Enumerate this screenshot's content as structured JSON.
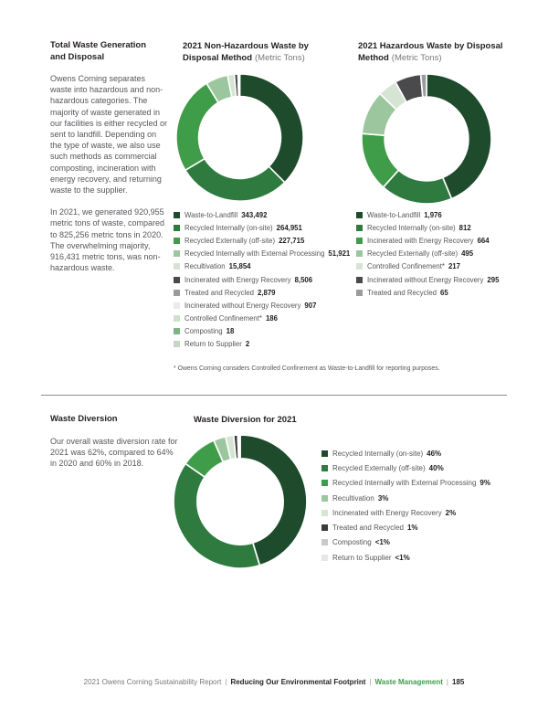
{
  "colors": {
    "accent_green": "#3f9c49",
    "text_dark": "#231f20",
    "text_muted": "#55565a",
    "divider_gray": "#8d8e90"
  },
  "sections": {
    "waste_generation": {
      "heading": "Total Waste Generation\nand Disposal",
      "paragraphs": [
        "Owens Corning separates waste into hazardous and non-hazardous categories. The majority of waste generated in our facilities is either recycled or sent to landfill. Depending on the type of waste, we also use such methods as commercial composting, incineration with energy recovery, and returning waste to the supplier.",
        "In 2021, we generated 920,955 metric tons of waste, compared to 825,256 metric tons in 2020. The overwhelming majority, 916,431 metric tons, was non-hazardous waste."
      ]
    },
    "waste_diversion": {
      "heading": "Waste Diversion",
      "paragraphs": [
        "Our overall waste diversion rate for 2021 was 62%, compared to 64% in 2020 and 60% in 2018."
      ]
    }
  },
  "footnote": "* Owens Corning considers Controlled Confinement as Waste-to-Landfill for reporting purposes.",
  "footer": {
    "parts": [
      {
        "text": "2021 Owens Corning Sustainability Report",
        "style": "muted"
      },
      {
        "text": "|",
        "style": "sep"
      },
      {
        "text": "Reducing Our Environmental Footprint",
        "style": "strong"
      },
      {
        "text": "|",
        "style": "sep"
      },
      {
        "text": "Waste Management",
        "style": "accent"
      },
      {
        "text": "|",
        "style": "sep"
      },
      {
        "text": "185",
        "style": "strong"
      }
    ]
  },
  "chart_data": [
    {
      "type": "donut",
      "title_lines": [
        {
          "bold": "2021 Non-Hazardous Waste by",
          "normal": ""
        },
        {
          "bold": "Disposal Method",
          "normal": "(Metric Tons)"
        }
      ],
      "unit": "Metric Tons",
      "legend_position": "below",
      "items": [
        {
          "label": "Waste-to-Landfill",
          "value": 343492,
          "display": "343,492",
          "color": "#1e4b2b"
        },
        {
          "label": "Recycled Internally (on-site)",
          "value": 264951,
          "display": "264,951",
          "color": "#2e7a3f"
        },
        {
          "label": "Recycled Externally (off-site)",
          "value": 227715,
          "display": "227,715",
          "color": "#3f9c49"
        },
        {
          "label": "Recycled Internally with External Processing",
          "value": 51921,
          "display": "51,921",
          "color": "#9cc69e"
        },
        {
          "label": "Recultivation",
          "value": 15854,
          "display": "15,854",
          "color": "#d6e5d3"
        },
        {
          "label": "Incinerated with Energy Recovery",
          "value": 8506,
          "display": "8,506",
          "color": "#4a4a4c"
        },
        {
          "label": "Treated and Recycled",
          "value": 2879,
          "display": "2,879",
          "color": "#9b9b9d"
        },
        {
          "label": "Incinerated without Energy Recovery",
          "value": 907,
          "display": "907",
          "color": "#eaeae8"
        },
        {
          "label": "Controlled Confinement*",
          "value": 186,
          "display": "186",
          "color": "#cfe0cc"
        },
        {
          "label": "Composting",
          "value": 18,
          "display": "18",
          "color": "#7db482"
        },
        {
          "label": "Return to Supplier",
          "value": 2,
          "display": "2",
          "color": "#c5d6c3"
        }
      ]
    },
    {
      "type": "donut",
      "title_lines": [
        {
          "bold": "2021 Hazardous Waste by Disposal",
          "normal": ""
        },
        {
          "bold": "Method",
          "normal": "(Metric Tons)"
        }
      ],
      "unit": "Metric Tons",
      "legend_position": "below",
      "items": [
        {
          "label": "Waste-to-Landfill",
          "value": 1976,
          "display": "1,976",
          "color": "#1e4b2b"
        },
        {
          "label": "Recycled Internally (on-site)",
          "value": 812,
          "display": "812",
          "color": "#2e7a3f"
        },
        {
          "label": "Incinerated with Energy Recovery",
          "value": 664,
          "display": "664",
          "color": "#3f9c49"
        },
        {
          "label": "Recycled Externally (off-site)",
          "value": 495,
          "display": "495",
          "color": "#9cc69e"
        },
        {
          "label": "Controlled Confinement*",
          "value": 217,
          "display": "217",
          "color": "#d6e5d3"
        },
        {
          "label": "Incinerated without Energy Recovery",
          "value": 295,
          "display": "295",
          "color": "#4a4a4c"
        },
        {
          "label": "Treated and Recycled",
          "value": 65,
          "display": "65",
          "color": "#9b9b9d"
        }
      ]
    },
    {
      "type": "donut",
      "title_lines": [
        {
          "bold": "Waste Diversion for 2021",
          "normal": ""
        }
      ],
      "unit": "percent",
      "legend_position": "right",
      "items": [
        {
          "label": "Recycled Internally (on-site)",
          "value": 46,
          "display": "46%",
          "color": "#1e4b2b"
        },
        {
          "label": "Recycled Externally (off-site)",
          "value": 40,
          "display": "40%",
          "color": "#2e7a3f"
        },
        {
          "label": "Recycled Internally with External Processing",
          "value": 9,
          "display": "9%",
          "color": "#3f9c49"
        },
        {
          "label": "Recultivation",
          "value": 3,
          "display": "3%",
          "color": "#9cc69e"
        },
        {
          "label": "Incinerated with Energy Recovery",
          "value": 2,
          "display": "2%",
          "color": "#d6e5d3"
        },
        {
          "label": "Treated and Recycled",
          "value": 1,
          "display": "1%",
          "color": "#3a3a3c"
        },
        {
          "label": "Composting",
          "value": 0.3,
          "display": "<1%",
          "color": "#c9c9c9"
        },
        {
          "label": "Return to Supplier",
          "value": 0.3,
          "display": "<1%",
          "color": "#e7e7e5"
        }
      ]
    }
  ]
}
